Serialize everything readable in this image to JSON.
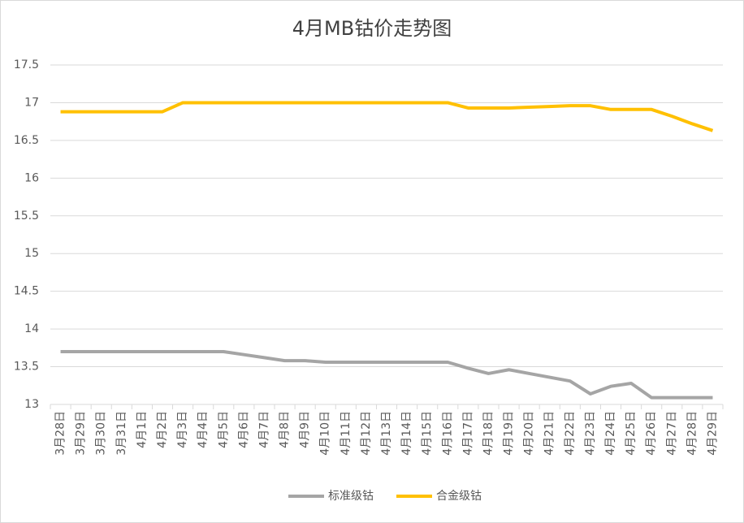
{
  "chart_data": {
    "type": "line",
    "title": "4月MB钴价走势图",
    "categories": [
      "3月28日",
      "3月29日",
      "3月30日",
      "3月31日",
      "4月1日",
      "4月2日",
      "4月3日",
      "4月4日",
      "4月5日",
      "4月6日",
      "4月7日",
      "4月8日",
      "4月9日",
      "4月10日",
      "4月11日",
      "4月12日",
      "4月13日",
      "4月14日",
      "4月15日",
      "4月16日",
      "4月17日",
      "4月18日",
      "4月19日",
      "4月20日",
      "4月21日",
      "4月22日",
      "4月23日",
      "4月24日",
      "4月25日",
      "4月26日",
      "4月27日",
      "4月28日",
      "4月29日"
    ],
    "series": [
      {
        "name": "标准级钴",
        "color": "#a5a5a5",
        "values": [
          13.7,
          13.7,
          13.7,
          13.7,
          13.7,
          13.7,
          13.7,
          13.7,
          13.7,
          13.66,
          13.62,
          13.58,
          13.58,
          13.56,
          13.56,
          13.56,
          13.56,
          13.56,
          13.56,
          13.56,
          13.48,
          13.41,
          13.46,
          13.41,
          13.36,
          13.31,
          13.14,
          13.24,
          13.28,
          13.09,
          13.09,
          13.09,
          13.09
        ]
      },
      {
        "name": "合金级钴",
        "color": "#ffc000",
        "values": [
          16.88,
          16.88,
          16.88,
          16.88,
          16.88,
          16.88,
          17.0,
          17.0,
          17.0,
          17.0,
          17.0,
          17.0,
          17.0,
          17.0,
          17.0,
          17.0,
          17.0,
          17.0,
          17.0,
          17.0,
          16.93,
          16.93,
          16.93,
          16.94,
          16.95,
          16.96,
          16.96,
          16.91,
          16.91,
          16.91,
          16.82,
          16.72,
          16.63
        ]
      }
    ],
    "ylim": [
      13,
      17.5
    ],
    "yticks": [
      13,
      13.5,
      14,
      14.5,
      15,
      15.5,
      16,
      16.5,
      17,
      17.5
    ],
    "grid": true,
    "legend": "bottom"
  }
}
